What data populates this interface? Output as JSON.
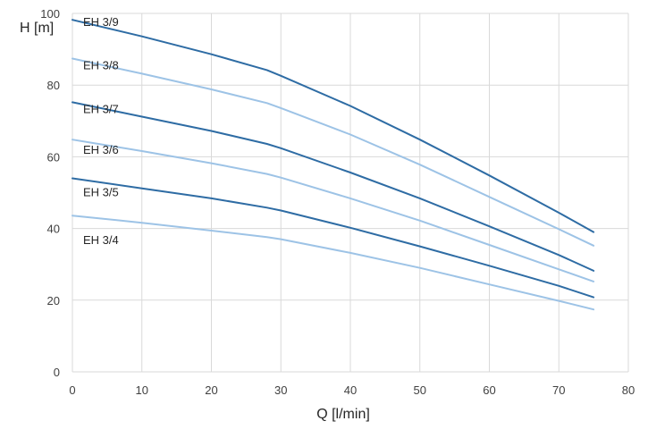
{
  "chart_data": {
    "type": "line",
    "xlabel": "Q [l/min]",
    "ylabel": "H [m]",
    "xlim": [
      0,
      80
    ],
    "ylim": [
      0,
      100
    ],
    "x_ticks": [
      0,
      10,
      20,
      30,
      40,
      50,
      60,
      70,
      80
    ],
    "y_ticks": [
      0,
      20,
      40,
      60,
      80,
      100
    ],
    "grid": "vertical and horizontal",
    "legend": "none (labels at left of curves)",
    "x": [
      0,
      10,
      20,
      28,
      30,
      40,
      50,
      60,
      70,
      75
    ],
    "series": [
      {
        "name": "EH 3/9",
        "color": "#2e6ca4",
        "values": [
          98.2,
          93.6,
          88.6,
          84.2,
          82.6,
          74.2,
          64.8,
          54.8,
          44.4,
          39.0
        ]
      },
      {
        "name": "EH 3/8",
        "color": "#9dc3e6",
        "values": [
          87.4,
          83.2,
          78.8,
          75.0,
          73.6,
          66.2,
          57.8,
          48.8,
          39.8,
          35.2
        ]
      },
      {
        "name": "EH 3/7",
        "color": "#2e6ca4",
        "values": [
          75.2,
          71.2,
          67.2,
          63.6,
          62.4,
          55.6,
          48.4,
          40.6,
          32.6,
          28.2
        ]
      },
      {
        "name": "EH 3/6",
        "color": "#9dc3e6",
        "values": [
          64.8,
          61.6,
          58.2,
          55.2,
          54.2,
          48.4,
          42.2,
          35.4,
          28.6,
          25.2
        ]
      },
      {
        "name": "EH 3/5",
        "color": "#2e6ca4",
        "values": [
          54.0,
          51.2,
          48.4,
          45.8,
          45.0,
          40.2,
          35.0,
          29.6,
          24.0,
          20.8
        ]
      },
      {
        "name": "EH 3/4",
        "color": "#9dc3e6",
        "values": [
          43.6,
          41.6,
          39.4,
          37.6,
          37.0,
          33.2,
          29.0,
          24.4,
          19.8,
          17.4
        ]
      }
    ]
  }
}
